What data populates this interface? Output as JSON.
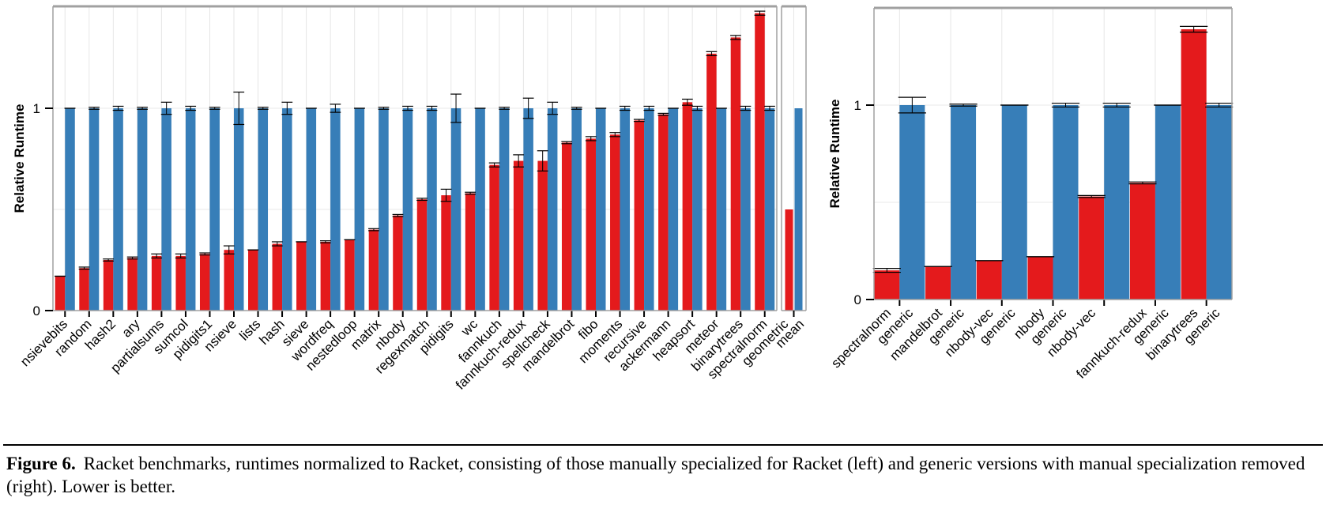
{
  "chart_data": [
    {
      "type": "bar",
      "ylabel": "Relative Runtime",
      "yticks": [
        0,
        1
      ],
      "ylim": [
        0,
        1.5
      ],
      "grid": true,
      "series": [
        {
          "color": "#e41a1c"
        },
        {
          "color": "#377eb8"
        }
      ],
      "categories": [
        "nsievebits",
        "random",
        "hash2",
        "ary",
        "partialsums",
        "sumcol",
        "pidigits1",
        "nsieve",
        "lists",
        "hash",
        "sieve",
        "wordfreq",
        "nestedloop",
        "matrix",
        "nbody",
        "regexmatch",
        "pidigits",
        "wc",
        "fannkuch",
        "fannkuch-redux",
        "spellcheck",
        "mandelbrot",
        "fibo",
        "moments",
        "recursive",
        "ackermann",
        "heapsort",
        "meteor",
        "binarytrees",
        "spectralnorm"
      ],
      "values": [
        [
          0.17,
          1.0
        ],
        [
          0.21,
          1.0
        ],
        [
          0.25,
          1.0
        ],
        [
          0.26,
          1.0
        ],
        [
          0.27,
          1.0
        ],
        [
          0.27,
          1.0
        ],
        [
          0.28,
          1.0
        ],
        [
          0.3,
          1.0
        ],
        [
          0.3,
          1.0
        ],
        [
          0.33,
          1.0
        ],
        [
          0.34,
          1.0
        ],
        [
          0.34,
          1.0
        ],
        [
          0.35,
          1.0
        ],
        [
          0.4,
          1.0
        ],
        [
          0.47,
          1.0
        ],
        [
          0.55,
          1.0
        ],
        [
          0.57,
          1.0
        ],
        [
          0.58,
          1.0
        ],
        [
          0.72,
          1.0
        ],
        [
          0.74,
          1.0
        ],
        [
          0.74,
          1.0
        ],
        [
          0.83,
          1.0
        ],
        [
          0.85,
          1.0
        ],
        [
          0.87,
          1.0
        ],
        [
          0.94,
          1.0
        ],
        [
          0.97,
          1.0
        ],
        [
          1.03,
          1.0
        ],
        [
          1.27,
          1.0
        ],
        [
          1.35,
          1.0
        ],
        [
          1.47,
          1.0
        ]
      ],
      "errors": [
        [
          0.0,
          0.0
        ],
        [
          0.005,
          0.005
        ],
        [
          0.005,
          0.01
        ],
        [
          0.005,
          0.005
        ],
        [
          0.01,
          0.03
        ],
        [
          0.01,
          0.01
        ],
        [
          0.005,
          0.005
        ],
        [
          0.02,
          0.08
        ],
        [
          0.0,
          0.005
        ],
        [
          0.01,
          0.03
        ],
        [
          0.0,
          0.0
        ],
        [
          0.005,
          0.02
        ],
        [
          0.0,
          0.0
        ],
        [
          0.005,
          0.005
        ],
        [
          0.005,
          0.01
        ],
        [
          0.005,
          0.01
        ],
        [
          0.03,
          0.07
        ],
        [
          0.005,
          0.0
        ],
        [
          0.01,
          0.005
        ],
        [
          0.03,
          0.05
        ],
        [
          0.05,
          0.03
        ],
        [
          0.005,
          0.005
        ],
        [
          0.01,
          0.0
        ],
        [
          0.01,
          0.01
        ],
        [
          0.005,
          0.01
        ],
        [
          0.005,
          0.0
        ],
        [
          0.015,
          0.01
        ],
        [
          0.01,
          0.0
        ],
        [
          0.01,
          0.01
        ],
        [
          0.01,
          0.01
        ]
      ]
    },
    {
      "type": "bar",
      "xlabel": "geometric mean",
      "ylim": [
        0,
        1.5
      ],
      "values": [
        0.5,
        1.0
      ]
    },
    {
      "type": "bar",
      "ylabel": "Relative Runtime",
      "yticks": [
        0,
        1
      ],
      "ylim": [
        0,
        1.5
      ],
      "grid": true,
      "tick_labels": [
        [
          "spectralnorm",
          "generic"
        ],
        [
          "mandelbrot",
          "generic"
        ],
        [
          "nbody-vec",
          "generic"
        ],
        [
          "nbody",
          "generic"
        ],
        [
          "nbody-vec",
          ""
        ],
        [
          "fannkuch-redux",
          "generic"
        ],
        [
          "binarytrees",
          "generic"
        ]
      ],
      "values": [
        [
          0.15,
          1.0
        ],
        [
          0.17,
          1.0
        ],
        [
          0.2,
          1.0
        ],
        [
          0.22,
          1.0
        ],
        [
          0.53,
          1.0
        ],
        [
          0.6,
          1.0
        ],
        [
          1.39,
          1.0
        ]
      ],
      "errors": [
        [
          0.01,
          0.04
        ],
        [
          0.0,
          0.005
        ],
        [
          0.0,
          0.0
        ],
        [
          0.0,
          0.01
        ],
        [
          0.005,
          0.01
        ],
        [
          0.005,
          0.0
        ],
        [
          0.015,
          0.01
        ]
      ]
    }
  ],
  "caption": {
    "label": "Figure 6.",
    "text": "Racket benchmarks, runtimes normalized to Racket, consisting of those manually specialized for Racket (left) and generic versions with manual specialization removed (right). Lower is better."
  }
}
